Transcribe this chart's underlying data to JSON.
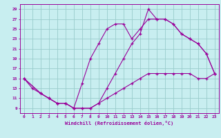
{
  "xlabel": "Windchill (Refroidissement éolien,°C)",
  "xlim": [
    -0.5,
    23.5
  ],
  "ylim": [
    8.0,
    30.0
  ],
  "xticks": [
    0,
    1,
    2,
    3,
    4,
    5,
    6,
    7,
    8,
    9,
    10,
    11,
    12,
    13,
    14,
    15,
    16,
    17,
    18,
    19,
    20,
    21,
    22,
    23
  ],
  "yticks": [
    9,
    11,
    13,
    15,
    17,
    19,
    21,
    23,
    25,
    27,
    29
  ],
  "bg_color": "#c8eef0",
  "line_color": "#990099",
  "grid_color": "#99cccc",
  "line1_x": [
    0,
    1,
    2,
    3,
    4,
    5,
    6,
    7,
    8,
    9,
    10,
    11,
    12,
    13,
    14,
    15,
    16,
    17,
    18,
    19,
    20,
    21,
    22,
    23
  ],
  "line1_y": [
    15,
    13,
    12,
    11,
    10,
    10,
    9,
    9,
    9,
    10,
    11,
    12,
    13,
    14,
    15,
    16,
    16,
    16,
    16,
    16,
    16,
    15,
    15,
    16
  ],
  "line2_x": [
    0,
    2,
    3,
    4,
    5,
    6,
    7,
    8,
    9,
    10,
    11,
    12,
    13,
    14,
    15,
    16,
    17,
    18,
    19,
    20,
    21,
    22,
    23
  ],
  "line2_y": [
    15,
    12,
    11,
    10,
    10,
    9,
    14,
    19,
    22,
    25,
    26,
    26,
    23,
    25,
    27,
    27,
    27,
    26,
    24,
    23,
    22,
    20,
    16
  ],
  "line3_x": [
    0,
    2,
    3,
    4,
    5,
    6,
    7,
    8,
    9,
    10,
    11,
    12,
    13,
    14,
    15,
    16,
    17,
    18,
    19,
    20,
    21,
    22,
    23
  ],
  "line3_y": [
    15,
    12,
    11,
    10,
    10,
    9,
    9,
    9,
    10,
    13,
    16,
    19,
    22,
    24,
    29,
    27,
    27,
    26,
    24,
    23,
    22,
    20,
    16
  ]
}
